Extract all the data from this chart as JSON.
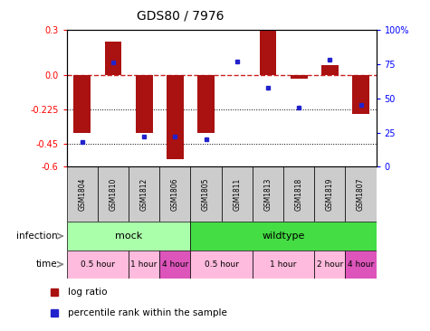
{
  "title": "GDS80 / 7976",
  "samples": [
    "GSM1804",
    "GSM1810",
    "GSM1812",
    "GSM1806",
    "GSM1805",
    "GSM1811",
    "GSM1813",
    "GSM1818",
    "GSM1819",
    "GSM1807"
  ],
  "log_ratio": [
    -0.38,
    0.22,
    -0.38,
    -0.55,
    -0.38,
    0.005,
    0.3,
    -0.02,
    0.07,
    -0.255
  ],
  "percentile": [
    18,
    76,
    22,
    22,
    20,
    77,
    58,
    43,
    78,
    45
  ],
  "ylim": [
    -0.6,
    0.3
  ],
  "yticks_left": [
    0.3,
    0.0,
    -0.225,
    -0.45,
    -0.6
  ],
  "yticks_right": [
    100,
    75,
    50,
    25,
    0
  ],
  "bar_color": "#aa1111",
  "dot_color": "#2222cc",
  "zero_line_color": "#cc2222",
  "grid_line_color": "#000000",
  "infection_groups": [
    {
      "label": "mock",
      "start": 0,
      "end": 4,
      "color": "#aaffaa"
    },
    {
      "label": "wildtype",
      "start": 4,
      "end": 10,
      "color": "#44dd44"
    }
  ],
  "time_groups": [
    {
      "label": "0.5 hour",
      "start": 0,
      "end": 2,
      "color": "#ffbbdd"
    },
    {
      "label": "1 hour",
      "start": 2,
      "end": 3,
      "color": "#ffbbdd"
    },
    {
      "label": "4 hour",
      "start": 3,
      "end": 4,
      "color": "#dd55bb"
    },
    {
      "label": "0.5 hour",
      "start": 4,
      "end": 6,
      "color": "#ffbbdd"
    },
    {
      "label": "1 hour",
      "start": 6,
      "end": 8,
      "color": "#ffbbdd"
    },
    {
      "label": "2 hour",
      "start": 8,
      "end": 9,
      "color": "#ffbbdd"
    },
    {
      "label": "4 hour",
      "start": 9,
      "end": 10,
      "color": "#dd55bb"
    }
  ],
  "legend_items": [
    {
      "label": "log ratio",
      "color": "#aa1111",
      "marker": "s"
    },
    {
      "label": "percentile rank within the sample",
      "color": "#2222cc",
      "marker": "s"
    }
  ],
  "bar_width": 0.55,
  "infection_label": "infection",
  "time_label": "time",
  "sample_box_color": "#cccccc"
}
